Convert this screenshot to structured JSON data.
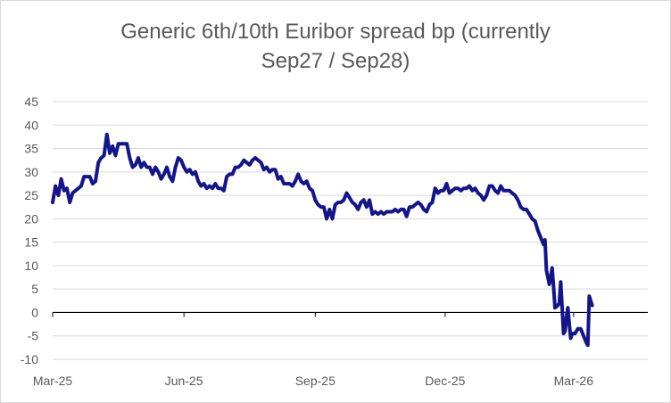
{
  "chart_data": {
    "type": "line",
    "title_line1": "Generic 6th/10th Euribor spread bp (currently",
    "title_line2": "Sep27 / Sep28)",
    "xlabel": "",
    "ylabel": "",
    "ylim": [
      -10,
      45
    ],
    "yticks": [
      45,
      40,
      35,
      30,
      25,
      20,
      15,
      10,
      5,
      0,
      -5,
      -10
    ],
    "xlim": [
      "2025-03-01",
      "2026-04-22"
    ],
    "xtick_labels": [
      {
        "date": "2025-03-01",
        "label": "Mar-25"
      },
      {
        "date": "2025-06-01",
        "label": "Jun-25"
      },
      {
        "date": "2025-09-01",
        "label": "Sep-25"
      },
      {
        "date": "2025-12-01",
        "label": "Dec-25"
      },
      {
        "date": "2026-03-01",
        "label": "Mar-26"
      }
    ],
    "grid": "horizontal",
    "legend": "none",
    "series": [
      {
        "color": "#14148c",
        "points": [
          [
            "2025-03-01",
            23.5
          ],
          [
            "2025-03-03",
            27
          ],
          [
            "2025-03-05",
            25
          ],
          [
            "2025-03-07",
            28.5
          ],
          [
            "2025-03-09",
            26
          ],
          [
            "2025-03-11",
            26.5
          ],
          [
            "2025-03-13",
            23.5
          ],
          [
            "2025-03-15",
            25.5
          ],
          [
            "2025-03-17",
            26
          ],
          [
            "2025-03-19",
            26.5
          ],
          [
            "2025-03-21",
            27
          ],
          [
            "2025-03-23",
            29
          ],
          [
            "2025-03-25",
            29
          ],
          [
            "2025-03-27",
            29
          ],
          [
            "2025-03-29",
            27.5
          ],
          [
            "2025-03-31",
            28
          ],
          [
            "2025-04-02",
            32
          ],
          [
            "2025-04-04",
            33
          ],
          [
            "2025-04-06",
            33.5
          ],
          [
            "2025-04-08",
            38
          ],
          [
            "2025-04-10",
            34
          ],
          [
            "2025-04-12",
            35.5
          ],
          [
            "2025-04-14",
            33.5
          ],
          [
            "2025-04-16",
            36
          ],
          [
            "2025-04-18",
            36
          ],
          [
            "2025-04-20",
            36
          ],
          [
            "2025-04-22",
            36
          ],
          [
            "2025-04-24",
            33
          ],
          [
            "2025-04-26",
            31
          ],
          [
            "2025-04-28",
            31.5
          ],
          [
            "2025-04-30",
            33
          ],
          [
            "2025-05-02",
            31
          ],
          [
            "2025-05-04",
            32
          ],
          [
            "2025-05-06",
            31
          ],
          [
            "2025-05-08",
            31
          ],
          [
            "2025-05-10",
            29.5
          ],
          [
            "2025-05-12",
            31
          ],
          [
            "2025-05-14",
            30
          ],
          [
            "2025-05-16",
            28.5
          ],
          [
            "2025-05-18",
            29.5
          ],
          [
            "2025-05-20",
            31
          ],
          [
            "2025-05-22",
            29
          ],
          [
            "2025-05-24",
            28
          ],
          [
            "2025-05-26",
            31
          ],
          [
            "2025-05-28",
            33
          ],
          [
            "2025-05-30",
            32.5
          ],
          [
            "2025-06-01",
            31
          ],
          [
            "2025-06-03",
            30
          ],
          [
            "2025-06-05",
            30.5
          ],
          [
            "2025-06-07",
            29.5
          ],
          [
            "2025-06-09",
            30
          ],
          [
            "2025-06-11",
            28
          ],
          [
            "2025-06-13",
            27
          ],
          [
            "2025-06-15",
            27.5
          ],
          [
            "2025-06-17",
            26.5
          ],
          [
            "2025-06-19",
            27
          ],
          [
            "2025-06-21",
            26.5
          ],
          [
            "2025-06-23",
            27.5
          ],
          [
            "2025-06-25",
            26.5
          ],
          [
            "2025-06-27",
            26.5
          ],
          [
            "2025-06-29",
            26
          ],
          [
            "2025-07-01",
            29
          ],
          [
            "2025-07-03",
            29.5
          ],
          [
            "2025-07-05",
            29.5
          ],
          [
            "2025-07-07",
            31
          ],
          [
            "2025-07-09",
            31
          ],
          [
            "2025-07-11",
            31.5
          ],
          [
            "2025-07-13",
            32.5
          ],
          [
            "2025-07-15",
            32
          ],
          [
            "2025-07-17",
            31.5
          ],
          [
            "2025-07-19",
            32.5
          ],
          [
            "2025-07-21",
            33
          ],
          [
            "2025-07-23",
            32.5
          ],
          [
            "2025-07-25",
            32
          ],
          [
            "2025-07-27",
            30.5
          ],
          [
            "2025-07-29",
            31
          ],
          [
            "2025-07-31",
            30
          ],
          [
            "2025-08-02",
            30.5
          ],
          [
            "2025-08-04",
            30.5
          ],
          [
            "2025-08-06",
            28.5
          ],
          [
            "2025-08-08",
            29
          ],
          [
            "2025-08-10",
            27.5
          ],
          [
            "2025-08-12",
            27.5
          ],
          [
            "2025-08-14",
            27.5
          ],
          [
            "2025-08-16",
            27
          ],
          [
            "2025-08-18",
            28
          ],
          [
            "2025-08-20",
            29.5
          ],
          [
            "2025-08-22",
            28
          ],
          [
            "2025-08-24",
            27.5
          ],
          [
            "2025-08-26",
            28
          ],
          [
            "2025-08-28",
            26.5
          ],
          [
            "2025-08-30",
            26
          ],
          [
            "2025-09-01",
            24
          ],
          [
            "2025-09-03",
            23
          ],
          [
            "2025-09-05",
            22.5
          ],
          [
            "2025-09-07",
            22.5
          ],
          [
            "2025-09-09",
            20
          ],
          [
            "2025-09-11",
            22
          ],
          [
            "2025-09-13",
            20
          ],
          [
            "2025-09-15",
            23
          ],
          [
            "2025-09-17",
            23.5
          ],
          [
            "2025-09-19",
            23.5
          ],
          [
            "2025-09-21",
            24
          ],
          [
            "2025-09-23",
            25.5
          ],
          [
            "2025-09-25",
            24.5
          ],
          [
            "2025-09-27",
            23.5
          ],
          [
            "2025-09-29",
            23
          ],
          [
            "2025-10-01",
            22
          ],
          [
            "2025-10-03",
            23.5
          ],
          [
            "2025-10-05",
            24
          ],
          [
            "2025-10-07",
            22.5
          ],
          [
            "2025-10-09",
            24
          ],
          [
            "2025-10-11",
            21
          ],
          [
            "2025-10-13",
            21.5
          ],
          [
            "2025-10-15",
            21
          ],
          [
            "2025-10-17",
            21.5
          ],
          [
            "2025-10-19",
            21
          ],
          [
            "2025-10-21",
            21.5
          ],
          [
            "2025-10-23",
            21.5
          ],
          [
            "2025-10-25",
            21.5
          ],
          [
            "2025-10-27",
            22
          ],
          [
            "2025-10-29",
            21.5
          ],
          [
            "2025-10-31",
            22
          ],
          [
            "2025-11-02",
            22
          ],
          [
            "2025-11-04",
            20.5
          ],
          [
            "2025-11-06",
            22.5
          ],
          [
            "2025-11-08",
            22.5
          ],
          [
            "2025-11-10",
            23
          ],
          [
            "2025-11-12",
            23.5
          ],
          [
            "2025-11-14",
            23
          ],
          [
            "2025-11-16",
            22
          ],
          [
            "2025-11-18",
            21.5
          ],
          [
            "2025-11-20",
            23
          ],
          [
            "2025-11-22",
            23.5
          ],
          [
            "2025-11-24",
            26.5
          ],
          [
            "2025-11-26",
            25.5
          ],
          [
            "2025-11-28",
            26
          ],
          [
            "2025-11-30",
            26
          ],
          [
            "2025-12-02",
            27.5
          ],
          [
            "2025-12-04",
            25.5
          ],
          [
            "2025-12-06",
            26
          ],
          [
            "2025-12-08",
            26.5
          ],
          [
            "2025-12-10",
            26.5
          ],
          [
            "2025-12-12",
            26
          ],
          [
            "2025-12-14",
            26.5
          ],
          [
            "2025-12-16",
            26.5
          ],
          [
            "2025-12-18",
            27
          ],
          [
            "2025-12-20",
            26
          ],
          [
            "2025-12-22",
            26.5
          ],
          [
            "2025-12-24",
            25.5
          ],
          [
            "2025-12-26",
            25
          ],
          [
            "2025-12-28",
            24
          ],
          [
            "2025-12-30",
            25
          ],
          [
            "2026-01-01",
            27
          ],
          [
            "2026-01-03",
            27
          ],
          [
            "2026-01-05",
            26
          ],
          [
            "2026-01-07",
            25.5
          ],
          [
            "2026-01-09",
            27
          ],
          [
            "2026-01-11",
            26
          ],
          [
            "2026-01-13",
            26
          ],
          [
            "2026-01-15",
            26
          ],
          [
            "2026-01-17",
            25.5
          ],
          [
            "2026-01-19",
            25
          ],
          [
            "2026-01-21",
            24
          ],
          [
            "2026-01-23",
            22.5
          ],
          [
            "2026-01-25",
            22
          ],
          [
            "2026-01-27",
            22
          ],
          [
            "2026-01-29",
            21
          ],
          [
            "2026-01-31",
            20
          ],
          [
            "2026-02-02",
            19.5
          ],
          [
            "2026-02-04",
            17.5
          ],
          [
            "2026-02-06",
            16
          ],
          [
            "2026-02-08",
            14.5
          ],
          [
            "2026-02-09",
            15.5
          ],
          [
            "2026-02-10",
            9
          ],
          [
            "2026-02-11",
            7.5
          ],
          [
            "2026-02-12",
            6
          ],
          [
            "2026-02-13",
            7.5
          ],
          [
            "2026-02-14",
            9.5
          ],
          [
            "2026-02-15",
            5.5
          ],
          [
            "2026-02-16",
            1
          ],
          [
            "2026-02-18",
            1.5
          ],
          [
            "2026-02-19",
            2
          ],
          [
            "2026-02-20",
            6.5
          ],
          [
            "2026-02-21",
            1
          ],
          [
            "2026-02-22",
            -4.5
          ],
          [
            "2026-02-23",
            -4
          ],
          [
            "2026-02-24",
            -1
          ],
          [
            "2026-02-25",
            1
          ],
          [
            "2026-02-26",
            -2.5
          ],
          [
            "2026-02-27",
            -5.5
          ],
          [
            "2026-02-28",
            -4.5
          ],
          [
            "2026-03-02",
            -4.5
          ],
          [
            "2026-03-04",
            -3.5
          ],
          [
            "2026-03-06",
            -3.5
          ],
          [
            "2026-03-08",
            -5
          ],
          [
            "2026-03-10",
            -6.5
          ],
          [
            "2026-03-11",
            -7
          ],
          [
            "2026-03-12",
            3.5
          ],
          [
            "2026-03-13",
            2.5
          ],
          [
            "2026-03-14",
            1.5
          ]
        ]
      }
    ]
  }
}
